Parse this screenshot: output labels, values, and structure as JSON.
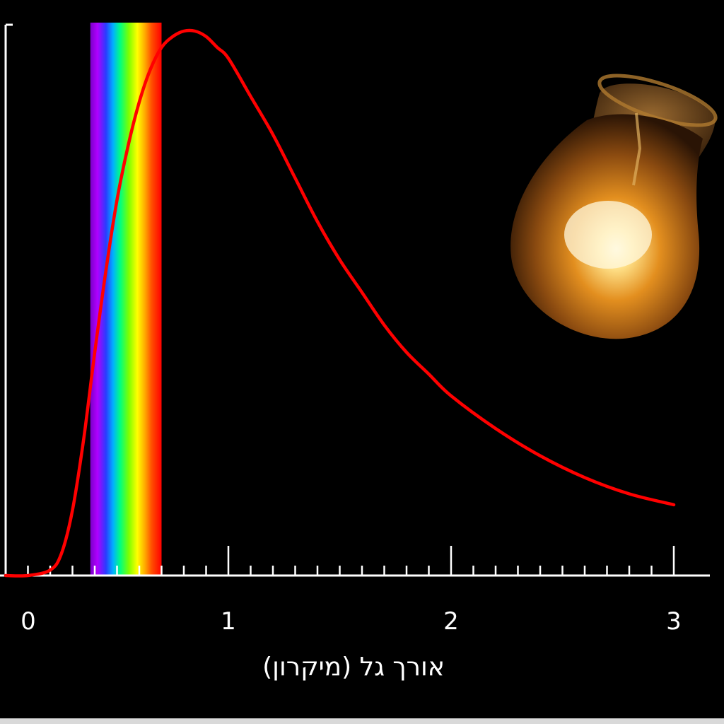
{
  "chart_data": {
    "type": "line",
    "title": "",
    "xlabel": "אורך גל (מיקרון)",
    "ylabel": "",
    "xlim": [
      0,
      3.05
    ],
    "ylim": [
      0,
      1
    ],
    "x_ticks": [
      0,
      1,
      2,
      3
    ],
    "x_tick_labels": [
      "0",
      "1",
      "2",
      "3"
    ],
    "minor_tick_step": 0.1,
    "grid": false,
    "legend": "none",
    "colors": {
      "curve": "#ff0000",
      "axis": "#ffffff",
      "background": "#000000"
    },
    "visible_spectrum_band": {
      "x_start": 0.38,
      "x_end": 0.7
    },
    "series": [
      {
        "x": [
          0.0,
          0.1,
          0.2,
          0.25,
          0.3,
          0.35,
          0.4,
          0.45,
          0.5,
          0.55,
          0.6,
          0.65,
          0.7,
          0.75,
          0.8,
          0.85,
          0.9,
          0.95,
          1.0,
          1.1,
          1.2,
          1.3,
          1.4,
          1.5,
          1.6,
          1.7,
          1.8,
          1.9,
          2.0,
          2.2,
          2.4,
          2.6,
          2.8,
          3.0
        ],
        "values": [
          0.0,
          0.0,
          0.01,
          0.04,
          0.12,
          0.25,
          0.41,
          0.56,
          0.69,
          0.79,
          0.87,
          0.93,
          0.97,
          0.99,
          1.0,
          1.0,
          0.99,
          0.97,
          0.95,
          0.88,
          0.81,
          0.73,
          0.65,
          0.58,
          0.52,
          0.46,
          0.41,
          0.37,
          0.33,
          0.27,
          0.22,
          0.18,
          0.15,
          0.13
        ]
      }
    ]
  },
  "decorations": {
    "light_bulb_icon": "glowing incandescent light bulb"
  }
}
